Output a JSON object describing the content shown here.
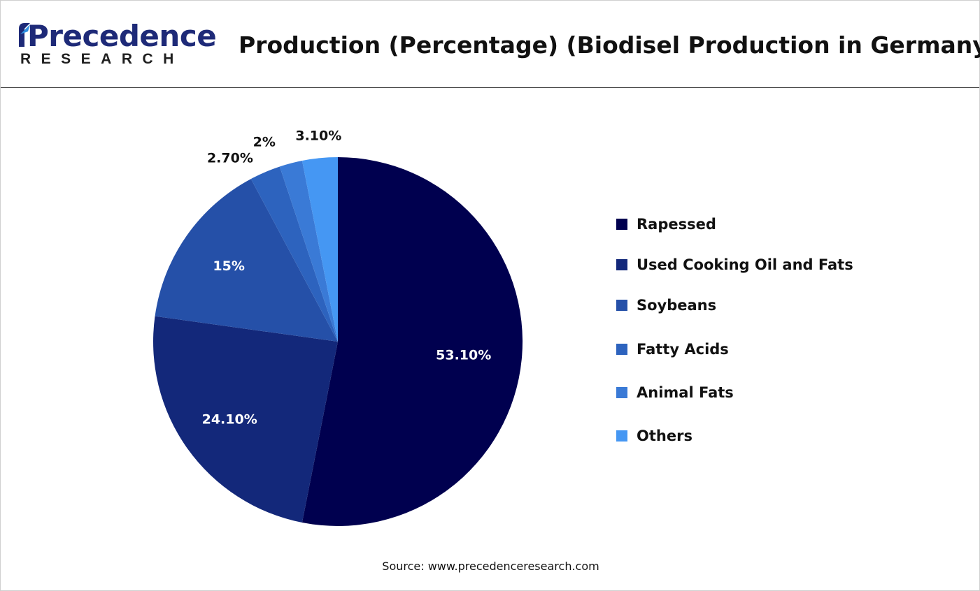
{
  "logo": {
    "word": "Precedence",
    "sub": "RESEARCH"
  },
  "title": "Production (Percentage) (Biodisel Production in Germany)",
  "source": "Source: www.precedenceresearch.com",
  "colors": {
    "brand": "#1e2a78",
    "label_inside": "#ffffff",
    "label_outside": "#111111"
  },
  "chart_data": {
    "type": "pie",
    "title": "Production (Percentage) (Biodisel Production in Germany)",
    "categories": [
      "Rapessed",
      "Used Cooking Oil and Fats",
      "Soybeans",
      "Fatty Acids",
      "Animal Fats",
      "Others"
    ],
    "values": [
      53.1,
      24.1,
      15,
      2.7,
      2,
      3.1
    ],
    "data_labels": [
      "53.10%",
      "24.10%",
      "15%",
      "2.70%",
      "2%",
      "3.10%"
    ],
    "colors": [
      "#00004f",
      "#13287a",
      "#2550a8",
      "#2d63be",
      "#3a7ad6",
      "#4597f3"
    ],
    "label_position": [
      "inside",
      "inside",
      "inside",
      "outside",
      "outside",
      "outside"
    ],
    "legend": "right",
    "start": "top, clockwise"
  }
}
